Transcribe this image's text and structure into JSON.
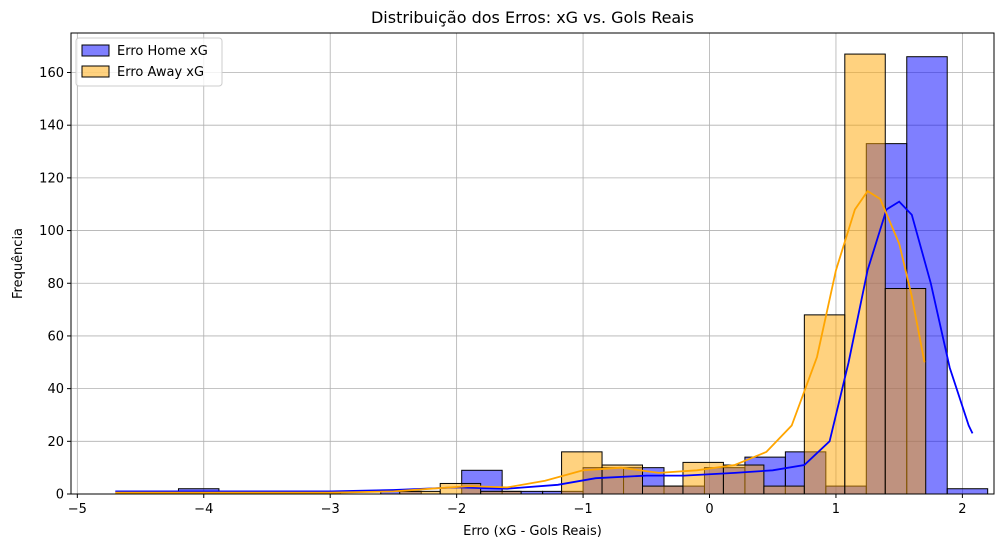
{
  "chart_data": {
    "type": "histogram",
    "title": "Distribuição dos Erros: xG vs. Gols Reais",
    "xlabel": "Erro (xG - Gols Reais)",
    "ylabel": "Frequência",
    "xlim": [
      -5.05,
      2.25
    ],
    "ylim": [
      0,
      175
    ],
    "xticks": [
      -5,
      -4,
      -3,
      -2,
      -1,
      0,
      1,
      2
    ],
    "yticks": [
      0,
      20,
      40,
      60,
      80,
      100,
      120,
      140,
      160
    ],
    "grid": true,
    "legend_position": "top-left",
    "series": [
      {
        "name": "Erro Home xG",
        "color": "#0000ff",
        "bins": [
          {
            "x0": -4.2,
            "x1": -3.88,
            "y": 2
          },
          {
            "x0": -3.24,
            "x1": -2.92,
            "y": 1
          },
          {
            "x0": -2.6,
            "x1": -2.28,
            "y": 1
          },
          {
            "x0": -1.96,
            "x1": -1.64,
            "y": 9
          },
          {
            "x0": -1.64,
            "x1": -1.32,
            "y": 1
          },
          {
            "x0": -1.32,
            "x1": -1.0,
            "y": 1
          },
          {
            "x0": -1.0,
            "x1": -0.68,
            "y": 10
          },
          {
            "x0": -0.68,
            "x1": -0.36,
            "y": 10
          },
          {
            "x0": -0.36,
            "x1": -0.04,
            "y": 3
          },
          {
            "x0": -0.04,
            "x1": 0.28,
            "y": 10
          },
          {
            "x0": 0.28,
            "x1": 0.6,
            "y": 14
          },
          {
            "x0": 0.6,
            "x1": 0.92,
            "y": 16
          },
          {
            "x0": 0.92,
            "x1": 1.24,
            "y": 3
          },
          {
            "x0": 1.24,
            "x1": 1.56,
            "y": 133
          },
          {
            "x0": 1.56,
            "x1": 1.88,
            "y": 166
          },
          {
            "x0": 1.88,
            "x1": 2.2,
            "y": 2
          }
        ],
        "kde": [
          [
            -4.7,
            1
          ],
          [
            -4.0,
            1
          ],
          [
            -3.0,
            1
          ],
          [
            -2.5,
            1.5
          ],
          [
            -2.0,
            2.5
          ],
          [
            -1.6,
            2
          ],
          [
            -1.2,
            3.5
          ],
          [
            -0.9,
            6
          ],
          [
            -0.5,
            7
          ],
          [
            -0.2,
            7
          ],
          [
            0.2,
            8
          ],
          [
            0.5,
            9
          ],
          [
            0.75,
            11
          ],
          [
            0.95,
            20
          ],
          [
            1.1,
            50
          ],
          [
            1.25,
            85
          ],
          [
            1.4,
            108
          ],
          [
            1.5,
            111
          ],
          [
            1.6,
            106
          ],
          [
            1.75,
            80
          ],
          [
            1.9,
            48
          ],
          [
            2.05,
            26
          ],
          [
            2.08,
            23
          ]
        ]
      },
      {
        "name": "Erro Away xG",
        "color": "#ffa500",
        "bins": [
          {
            "x0": -4.69,
            "x1": -4.37,
            "y": 1
          },
          {
            "x0": -4.37,
            "x1": -4.05,
            "y": 1
          },
          {
            "x0": -2.45,
            "x1": -2.13,
            "y": 1
          },
          {
            "x0": -2.13,
            "x1": -1.81,
            "y": 4
          },
          {
            "x0": -1.81,
            "x1": -1.49,
            "y": 1
          },
          {
            "x0": -1.17,
            "x1": -0.85,
            "y": 16
          },
          {
            "x0": -0.85,
            "x1": -0.53,
            "y": 11
          },
          {
            "x0": -0.53,
            "x1": -0.21,
            "y": 3
          },
          {
            "x0": -0.21,
            "x1": 0.11,
            "y": 12
          },
          {
            "x0": 0.11,
            "x1": 0.43,
            "y": 11
          },
          {
            "x0": 0.43,
            "x1": 0.75,
            "y": 3
          },
          {
            "x0": 0.75,
            "x1": 1.07,
            "y": 68
          },
          {
            "x0": 1.07,
            "x1": 1.39,
            "y": 167
          },
          {
            "x0": 1.39,
            "x1": 1.71,
            "y": 78
          }
        ],
        "kde": [
          [
            -4.7,
            0.5
          ],
          [
            -4.0,
            0.5
          ],
          [
            -3.0,
            0.5
          ],
          [
            -2.5,
            1
          ],
          [
            -2.2,
            2
          ],
          [
            -1.9,
            3
          ],
          [
            -1.6,
            2.5
          ],
          [
            -1.3,
            5
          ],
          [
            -1.0,
            9
          ],
          [
            -0.7,
            10
          ],
          [
            -0.4,
            8
          ],
          [
            -0.1,
            9
          ],
          [
            0.2,
            11
          ],
          [
            0.45,
            16
          ],
          [
            0.65,
            26
          ],
          [
            0.85,
            52
          ],
          [
            1.0,
            85
          ],
          [
            1.15,
            108
          ],
          [
            1.25,
            115
          ],
          [
            1.35,
            112
          ],
          [
            1.5,
            95
          ],
          [
            1.6,
            75
          ],
          [
            1.7,
            50
          ]
        ]
      }
    ]
  }
}
